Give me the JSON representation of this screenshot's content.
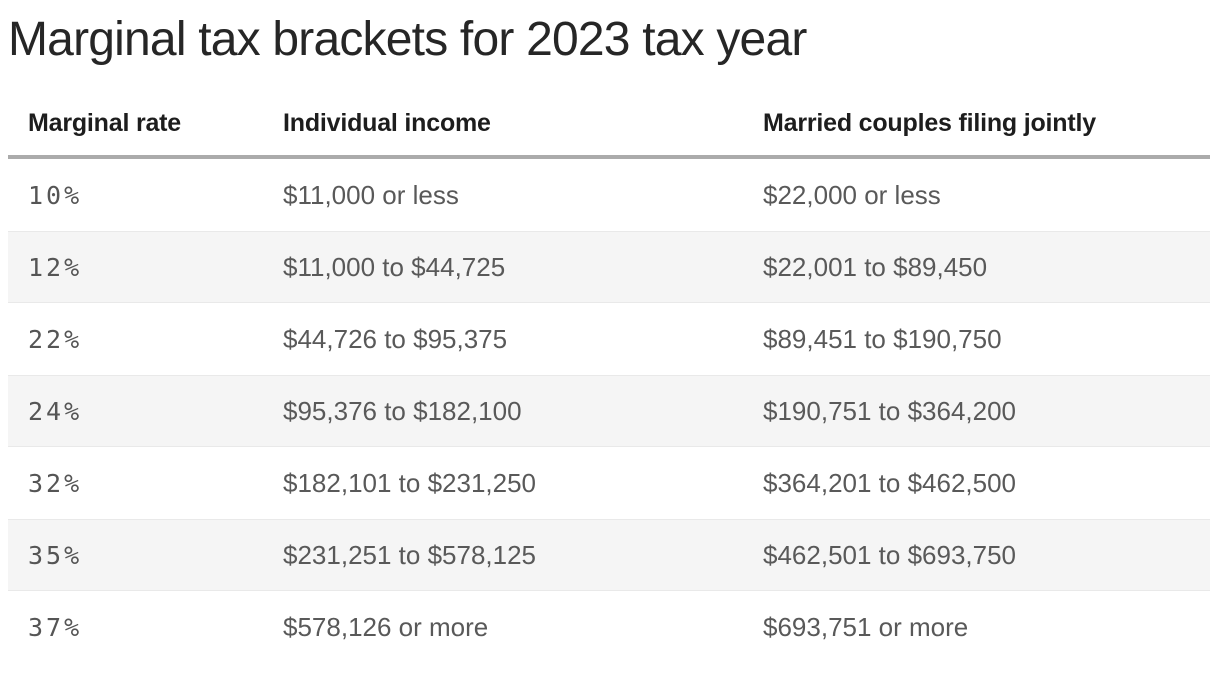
{
  "title": "Marginal tax brackets for 2023 tax year",
  "colors": {
    "title-text": "#262626",
    "header-text": "#1d1d1d",
    "body-text": "#595959",
    "rate-text": "#555555",
    "row-alt": "#f5f5f5",
    "divider": "#ababab"
  },
  "chart_data": {
    "type": "table",
    "title": "Marginal tax brackets for 2023 tax year",
    "columns": [
      "Marginal rate",
      "Individual income",
      "Married couples filing jointly"
    ],
    "rows": [
      {
        "rate": "10%",
        "individual": "$11,000 or less",
        "married": "$22,000 or less"
      },
      {
        "rate": "12%",
        "individual": "$11,000 to $44,725",
        "married": "$22,001 to $89,450"
      },
      {
        "rate": "22%",
        "individual": "$44,726 to $95,375",
        "married": "$89,451 to $190,750"
      },
      {
        "rate": "24%",
        "individual": "$95,376 to $182,100",
        "married": "$190,751 to $364,200"
      },
      {
        "rate": "32%",
        "individual": "$182,101 to $231,250",
        "married": "$364,201 to $462,500"
      },
      {
        "rate": "35%",
        "individual": "$231,251 to $578,125",
        "married": "$462,501 to $693,750"
      },
      {
        "rate": "37%",
        "individual": "$578,126 or more",
        "married": "$693,751 or more"
      }
    ],
    "layout": {
      "row_striping": "alternating, even rows shaded",
      "header_rule": "thick gray line under column headers",
      "grid": "off"
    }
  }
}
